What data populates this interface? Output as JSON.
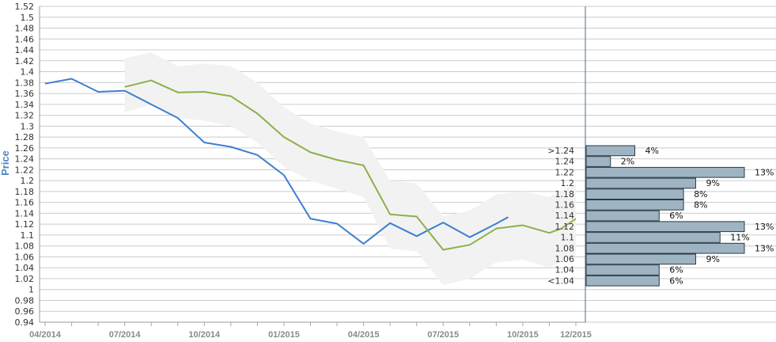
{
  "chart_data": {
    "type": "line",
    "ylabel": "Price",
    "ylim": [
      0.94,
      1.52
    ],
    "ytick_step": 0.02,
    "yticks": [
      "0.94",
      "0.96",
      "0.98",
      "1",
      "1.02",
      "1.04",
      "1.06",
      "1.08",
      "1.1",
      "1.12",
      "1.14",
      "1.16",
      "1.18",
      "1.2",
      "1.22",
      "1.24",
      "1.26",
      "1.28",
      "1.3",
      "1.32",
      "1.34",
      "1.36",
      "1.38",
      "1.4",
      "1.42",
      "1.44",
      "1.46",
      "1.48",
      "1.5",
      "1.52"
    ],
    "xlim": [
      "04/2014",
      "12/2015"
    ],
    "xticks": [
      "04/2014",
      "07/2014",
      "10/2014",
      "01/2015",
      "04/2015",
      "07/2015",
      "10/2015",
      "12/2015"
    ],
    "grid": true,
    "colors": {
      "historical": "#3c7fd0",
      "forecast": "#8db04a",
      "band": "#f2f2f2",
      "grid": "#cccccc",
      "bar_fill": "#9fb4c2",
      "bar_stroke": "#2b3a45",
      "ylabel": "#4a86c8"
    },
    "series": [
      {
        "key": "historical",
        "points": [
          {
            "x": "04/2014",
            "y": 1.378
          },
          {
            "x": "05/2014",
            "y": 1.387
          },
          {
            "x": "06/2014",
            "y": 1.363
          },
          {
            "x": "07/2014",
            "y": 1.365
          },
          {
            "x": "08/2014",
            "y": 1.34
          },
          {
            "x": "09/2014",
            "y": 1.315
          },
          {
            "x": "10/2014",
            "y": 1.27
          },
          {
            "x": "11/2014",
            "y": 1.262
          },
          {
            "x": "12/2014",
            "y": 1.247
          },
          {
            "x": "01/2015",
            "y": 1.21
          },
          {
            "x": "02/2015",
            "y": 1.13
          },
          {
            "x": "03/2015",
            "y": 1.121
          },
          {
            "x": "04/2015",
            "y": 1.084
          },
          {
            "x": "05/2015",
            "y": 1.122
          },
          {
            "x": "06/2015",
            "y": 1.098
          },
          {
            "x": "07/2015",
            "y": 1.123
          },
          {
            "x": "08/2015",
            "y": 1.096
          },
          {
            "x": "09/2015",
            "y": 1.121
          },
          {
            "x": "09/2015b",
            "y": 1.133
          }
        ]
      },
      {
        "key": "forecast",
        "points": [
          {
            "x": "07/2014",
            "y": 1.372
          },
          {
            "x": "08/2014",
            "y": 1.384
          },
          {
            "x": "09/2014",
            "y": 1.362
          },
          {
            "x": "10/2014",
            "y": 1.363
          },
          {
            "x": "11/2014",
            "y": 1.355
          },
          {
            "x": "12/2014",
            "y": 1.323
          },
          {
            "x": "01/2015",
            "y": 1.28
          },
          {
            "x": "02/2015",
            "y": 1.252
          },
          {
            "x": "03/2015",
            "y": 1.238
          },
          {
            "x": "04/2015",
            "y": 1.228
          },
          {
            "x": "05/2015",
            "y": 1.138
          },
          {
            "x": "06/2015",
            "y": 1.134
          },
          {
            "x": "07/2015",
            "y": 1.073
          },
          {
            "x": "08/2015",
            "y": 1.082
          },
          {
            "x": "09/2015",
            "y": 1.112
          },
          {
            "x": "10/2015",
            "y": 1.118
          },
          {
            "x": "11/2015",
            "y": 1.104
          },
          {
            "x": "11/2015b",
            "y": 1.112
          },
          {
            "x": "12/2015",
            "y": 1.13
          }
        ],
        "band": [
          {
            "x": "07/2014",
            "low": 1.325,
            "high": 1.425
          },
          {
            "x": "08/2014",
            "low": 1.34,
            "high": 1.435
          },
          {
            "x": "09/2014",
            "low": 1.315,
            "high": 1.41
          },
          {
            "x": "10/2014",
            "low": 1.31,
            "high": 1.415
          },
          {
            "x": "11/2014",
            "low": 1.3,
            "high": 1.41
          },
          {
            "x": "12/2014",
            "low": 1.27,
            "high": 1.38
          },
          {
            "x": "01/2015",
            "low": 1.225,
            "high": 1.335
          },
          {
            "x": "02/2015",
            "low": 1.2,
            "high": 1.305
          },
          {
            "x": "03/2015",
            "low": 1.185,
            "high": 1.29
          },
          {
            "x": "04/2015",
            "low": 1.17,
            "high": 1.28
          },
          {
            "x": "05/2015",
            "low": 1.075,
            "high": 1.2
          },
          {
            "x": "06/2015",
            "low": 1.07,
            "high": 1.195
          },
          {
            "x": "07/2015",
            "low": 1.008,
            "high": 1.135
          },
          {
            "x": "08/2015",
            "low": 1.02,
            "high": 1.145
          },
          {
            "x": "09/2015",
            "low": 1.05,
            "high": 1.175
          },
          {
            "x": "10/2015",
            "low": 1.055,
            "high": 1.18
          },
          {
            "x": "11/2015",
            "low": 1.04,
            "high": 1.17
          },
          {
            "x": "12/2015",
            "low": 1.065,
            "high": 1.195
          }
        ]
      }
    ],
    "histogram": {
      "categories": [
        ">1.24",
        "1.24",
        "1.22",
        "1.2",
        "1.18",
        "1.16",
        "1.14",
        "1.12",
        "1.1",
        "1.08",
        "1.06",
        "1.04",
        "<1.04"
      ],
      "values": [
        4,
        2,
        13,
        9,
        8,
        8,
        6,
        13,
        11,
        13,
        9,
        6,
        6
      ],
      "labels": [
        "4%",
        "2%",
        "13%",
        "9%",
        "8%",
        "8%",
        "6%",
        "13%",
        "11%",
        "13%",
        "9%",
        "6%",
        "6%"
      ]
    }
  }
}
